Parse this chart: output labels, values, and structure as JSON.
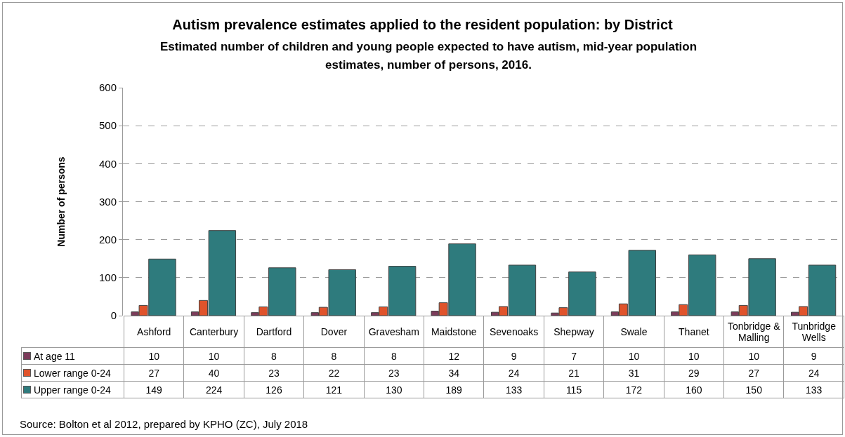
{
  "chart_data": {
    "type": "bar",
    "title": "Autism prevalence estimates applied to the resident population:  by District",
    "subtitle": "Estimated number of children and young people expected to have autism, mid-year population estimates, number of persons, 2016.",
    "ylabel": "Number of persons",
    "categories": [
      "Ashford",
      "Canterbury",
      "Dartford",
      "Dover",
      "Gravesham",
      "Maidstone",
      "Sevenoaks",
      "Shepway",
      "Swale",
      "Thanet",
      "Tonbridge & Malling",
      "Tunbridge Wells"
    ],
    "series": [
      {
        "name": "At age 11",
        "color": "#7b3b5a",
        "values": [
          10,
          10,
          8,
          8,
          8,
          12,
          9,
          7,
          10,
          10,
          10,
          9
        ]
      },
      {
        "name": "Lower range 0-24",
        "color": "#e0532b",
        "values": [
          27,
          40,
          23,
          22,
          23,
          34,
          24,
          21,
          31,
          29,
          27,
          24
        ]
      },
      {
        "name": "Upper range 0-24",
        "color": "#2e7b7d",
        "values": [
          149,
          224,
          126,
          121,
          130,
          189,
          133,
          115,
          172,
          160,
          150,
          133
        ]
      }
    ],
    "ylim": [
      0,
      600
    ],
    "yticks": [
      0,
      100,
      200,
      300,
      400,
      500,
      600
    ],
    "grid": "y",
    "legend": "bottom left",
    "data_labels": true,
    "annotations": [
      "Source: Bolton et al 2012, prepared by KPHO (ZC), July 2018"
    ]
  }
}
